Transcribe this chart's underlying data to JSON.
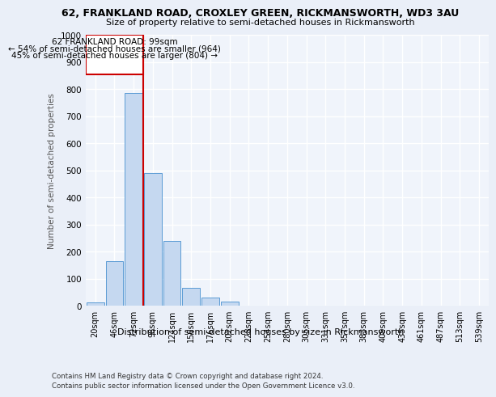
{
  "title1": "62, FRANKLAND ROAD, CROXLEY GREEN, RICKMANSWORTH, WD3 3AU",
  "title2": "Size of property relative to semi-detached houses in Rickmansworth",
  "xlabel": "Distribution of semi-detached houses by size in Rickmansworth",
  "ylabel": "Number of semi-detached properties",
  "bin_labels": [
    "20sqm",
    "46sqm",
    "72sqm",
    "98sqm",
    "124sqm",
    "150sqm",
    "176sqm",
    "202sqm",
    "228sqm",
    "254sqm",
    "280sqm",
    "305sqm",
    "331sqm",
    "357sqm",
    "383sqm",
    "409sqm",
    "435sqm",
    "461sqm",
    "487sqm",
    "513sqm",
    "539sqm"
  ],
  "bar_values": [
    12,
    165,
    785,
    490,
    238,
    65,
    30,
    15,
    0,
    0,
    0,
    0,
    0,
    0,
    0,
    0,
    0,
    0,
    0,
    0,
    0
  ],
  "bar_color": "#c5d8f0",
  "bar_edge_color": "#5b9bd5",
  "vline_x": 2.5,
  "annotation_title": "62 FRANKLAND ROAD: 99sqm",
  "annotation_line1": "← 54% of semi-detached houses are smaller (964)",
  "annotation_line2": "45% of semi-detached houses are larger (804) →",
  "annotation_color": "#cc0000",
  "ylim": [
    0,
    1000
  ],
  "yticks": [
    0,
    100,
    200,
    300,
    400,
    500,
    600,
    700,
    800,
    900,
    1000
  ],
  "footer1": "Contains HM Land Registry data © Crown copyright and database right 2024.",
  "footer2": "Contains public sector information licensed under the Open Government Licence v3.0.",
  "bg_color": "#eaeff8",
  "plot_bg_color": "#f0f4fb"
}
